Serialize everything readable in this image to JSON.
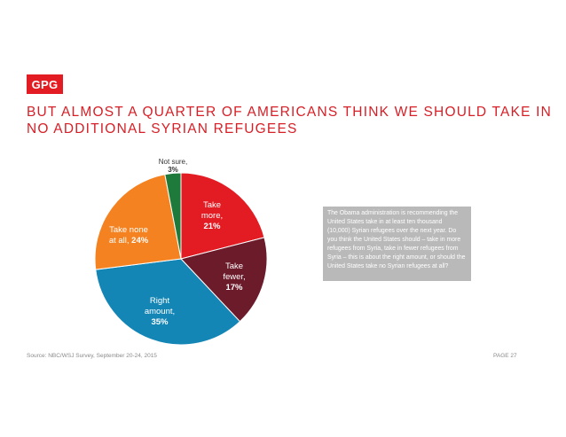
{
  "header": {
    "logo_text": "GPG",
    "title_line1": "BUT ALMOST A QUARTER OF AMERICANS THINK WE SHOULD TAKE IN",
    "title_line2": "NO ADDITIONAL SYRIAN REFUGEES"
  },
  "question_text": "The Obama administration is recommending the United States take in at least ten thousand (10,000) Syrian refugees over the next year. Do you think the United States should – take in more refugees from Syria, take in fewer refugees from Syria – this is about the right amount, or should the United States take no Syrian refugees at all?",
  "footer": {
    "source": "Source: NBC/WSJ Survey, September 20-24, 2015",
    "page": "PAGE 27"
  },
  "colors": {
    "brand_red": "#e31b23",
    "title_red": "#d61f26",
    "question_box": "#b9b9b9"
  },
  "chart_data": {
    "type": "pie",
    "start": "12 o'clock, clockwise",
    "slices": [
      {
        "key": "take-more",
        "label_lines": [
          "Take",
          "more,"
        ],
        "value_text": "21%",
        "value": 21,
        "color": "#e31b23",
        "label_color": "#ffffff"
      },
      {
        "key": "take-fewer",
        "label_lines": [
          "Take",
          "fewer,"
        ],
        "value_text": "17%",
        "value": 17,
        "color": "#6c1b2b",
        "label_color": "#ffffff"
      },
      {
        "key": "right-amount",
        "label_lines": [
          "Right",
          "amount,"
        ],
        "value_text": "35%",
        "value": 35,
        "color": "#1486b5",
        "label_color": "#ffffff"
      },
      {
        "key": "take-none",
        "label_lines": [
          "Take none",
          "at all,"
        ],
        "value_text": "24%",
        "value": 24,
        "color": "#f58220",
        "label_color": "#ffffff"
      },
      {
        "key": "not-sure",
        "label_lines": [
          "Not sure,"
        ],
        "value_text": "3%",
        "value": 3,
        "color": "#1e7a3a",
        "label_color": "#333333"
      }
    ]
  }
}
